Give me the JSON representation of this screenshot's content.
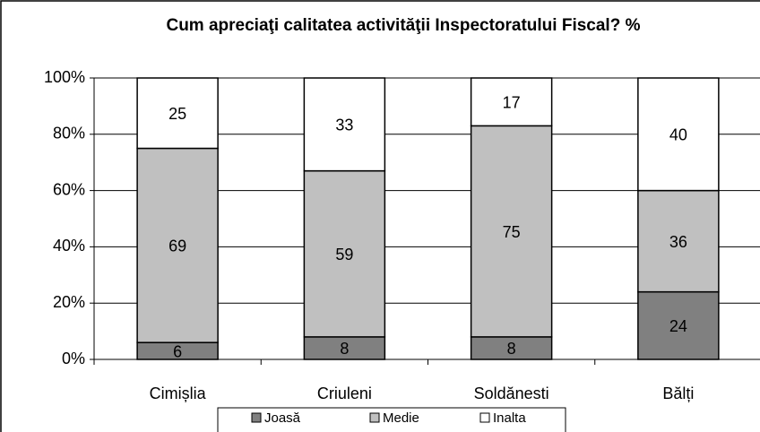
{
  "chart_data": {
    "type": "stacked_bar",
    "title": "Cum apreciaţi calitatea activităţii Inspectoratului Fiscal? %",
    "categories": [
      "Cimișlia",
      "Criuleni",
      "Soldănesti",
      "Bălți"
    ],
    "series": [
      {
        "name": "Joasă",
        "color": "#808080",
        "values": [
          6,
          8,
          8,
          24
        ]
      },
      {
        "name": "Medie",
        "color": "#c0c0c0",
        "values": [
          69,
          59,
          75,
          36
        ]
      },
      {
        "name": "Inalta",
        "color": "#ffffff",
        "values": [
          25,
          33,
          17,
          40
        ]
      }
    ],
    "ylim": [
      0,
      100
    ],
    "yticks": [
      {
        "value": 0,
        "label": "0%"
      },
      {
        "value": 20,
        "label": "20%"
      },
      {
        "value": 40,
        "label": "40%"
      },
      {
        "value": 60,
        "label": "60%"
      },
      {
        "value": 80,
        "label": "80%"
      },
      {
        "value": 100,
        "label": "100%"
      }
    ],
    "grid": true,
    "legend": "bottom"
  }
}
